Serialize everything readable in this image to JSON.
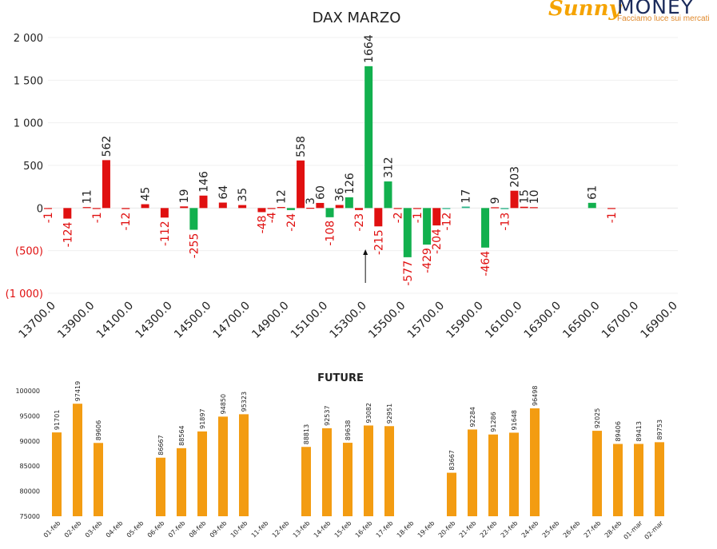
{
  "logo": {
    "name_a": "Sunny",
    "name_b": "MONEY",
    "tagline": "Facciamo luce sui mercati"
  },
  "chart_data": [
    {
      "type": "bar",
      "title": "DAX MARZO",
      "ylim": [
        -1000,
        2000
      ],
      "y_ticks": [
        {
          "v": 2000,
          "label": "2 000"
        },
        {
          "v": 1500,
          "label": "1 500"
        },
        {
          "v": 1000,
          "label": "1 000"
        },
        {
          "v": 500,
          "label": "500"
        },
        {
          "v": 0,
          "label": "0"
        },
        {
          "v": -500,
          "label": "(500)"
        },
        {
          "v": -1000,
          "label": "(1 000)"
        }
      ],
      "x_range": [
        13700,
        16900
      ],
      "x_tick_labels": [
        "13700.0",
        "13900.0",
        "14100.0",
        "14300.0",
        "14500.0",
        "14700.0",
        "14900.0",
        "15100.0",
        "15300.0",
        "15500.0",
        "15700.0",
        "15900.0",
        "16100.0",
        "16300.0",
        "16500.0",
        "16700.0",
        "16900.0"
      ],
      "grid": true,
      "colors": {
        "negative_red": "#e01010",
        "positive_green": "#12b04e",
        "teal": "#2fb58a"
      },
      "arrow_at": 15350,
      "bars": [
        {
          "x": 13700,
          "v": -1,
          "c": "red"
        },
        {
          "x": 13800,
          "v": -124,
          "c": "red"
        },
        {
          "x": 13900,
          "v": 11,
          "c": "red"
        },
        {
          "x": 13950,
          "v": -1,
          "c": "red"
        },
        {
          "x": 14000,
          "v": 562,
          "c": "red"
        },
        {
          "x": 14100,
          "v": -12,
          "c": "red"
        },
        {
          "x": 14200,
          "v": 45,
          "c": "red"
        },
        {
          "x": 14300,
          "v": -112,
          "c": "red"
        },
        {
          "x": 14400,
          "v": 19,
          "c": "red"
        },
        {
          "x": 14450,
          "v": -255,
          "c": "green"
        },
        {
          "x": 14500,
          "v": 146,
          "c": "red"
        },
        {
          "x": 14600,
          "v": 64,
          "c": "red"
        },
        {
          "x": 14700,
          "v": 35,
          "c": "red"
        },
        {
          "x": 14800,
          "v": -48,
          "c": "red"
        },
        {
          "x": 14850,
          "v": -4,
          "c": "red"
        },
        {
          "x": 14900,
          "v": 12,
          "c": "red"
        },
        {
          "x": 14950,
          "v": -24,
          "c": "green"
        },
        {
          "x": 15000,
          "v": 558,
          "c": "red"
        },
        {
          "x": 15050,
          "v": 3,
          "c": "red"
        },
        {
          "x": 15100,
          "v": 60,
          "c": "red"
        },
        {
          "x": 15150,
          "v": -108,
          "c": "green"
        },
        {
          "x": 15200,
          "v": 36,
          "c": "red"
        },
        {
          "x": 15250,
          "v": 126,
          "c": "green"
        },
        {
          "x": 15300,
          "v": -23,
          "c": "red"
        },
        {
          "x": 15350,
          "v": 1664,
          "c": "green"
        },
        {
          "x": 15400,
          "v": -215,
          "c": "red"
        },
        {
          "x": 15450,
          "v": 312,
          "c": "green"
        },
        {
          "x": 15500,
          "v": -2,
          "c": "red"
        },
        {
          "x": 15550,
          "v": -577,
          "c": "green"
        },
        {
          "x": 15600,
          "v": -1,
          "c": "red"
        },
        {
          "x": 15650,
          "v": -429,
          "c": "green"
        },
        {
          "x": 15700,
          "v": -204,
          "c": "red"
        },
        {
          "x": 15750,
          "v": -12,
          "c": "teal"
        },
        {
          "x": 15850,
          "v": 17,
          "c": "teal"
        },
        {
          "x": 15950,
          "v": -464,
          "c": "green"
        },
        {
          "x": 16000,
          "v": 9,
          "c": "red"
        },
        {
          "x": 16050,
          "v": -13,
          "c": "teal"
        },
        {
          "x": 16100,
          "v": 203,
          "c": "red"
        },
        {
          "x": 16150,
          "v": 15,
          "c": "red"
        },
        {
          "x": 16200,
          "v": 10,
          "c": "red"
        },
        {
          "x": 16500,
          "v": 61,
          "c": "green"
        },
        {
          "x": 16600,
          "v": -1,
          "c": "red"
        }
      ]
    },
    {
      "type": "bar",
      "title": "FUTURE",
      "ylim": [
        75000,
        100000
      ],
      "y_ticks": [
        100000,
        95000,
        90000,
        85000,
        80000,
        75000
      ],
      "color": "#f39c12",
      "categories": [
        "01-feb",
        "02-feb",
        "03-feb",
        "04-feb",
        "05-feb",
        "06-feb",
        "07-feb",
        "08-feb",
        "09-feb",
        "10-feb",
        "11-feb",
        "12-feb",
        "13-feb",
        "14-feb",
        "15-feb",
        "16-feb",
        "17-feb",
        "18-feb",
        "19-feb",
        "20-feb",
        "21-feb",
        "22-feb",
        "23-feb",
        "24-feb",
        "25-feb",
        "26-feb",
        "27-feb",
        "28-feb",
        "01-mar",
        "02-mar"
      ],
      "values": [
        91701,
        97419,
        89606,
        null,
        null,
        86667,
        88564,
        91897,
        94850,
        95323,
        null,
        null,
        88813,
        92537,
        89638,
        93082,
        92951,
        null,
        null,
        83667,
        92284,
        91286,
        91648,
        96498,
        null,
        null,
        92025,
        89406,
        89413,
        89753
      ]
    }
  ]
}
